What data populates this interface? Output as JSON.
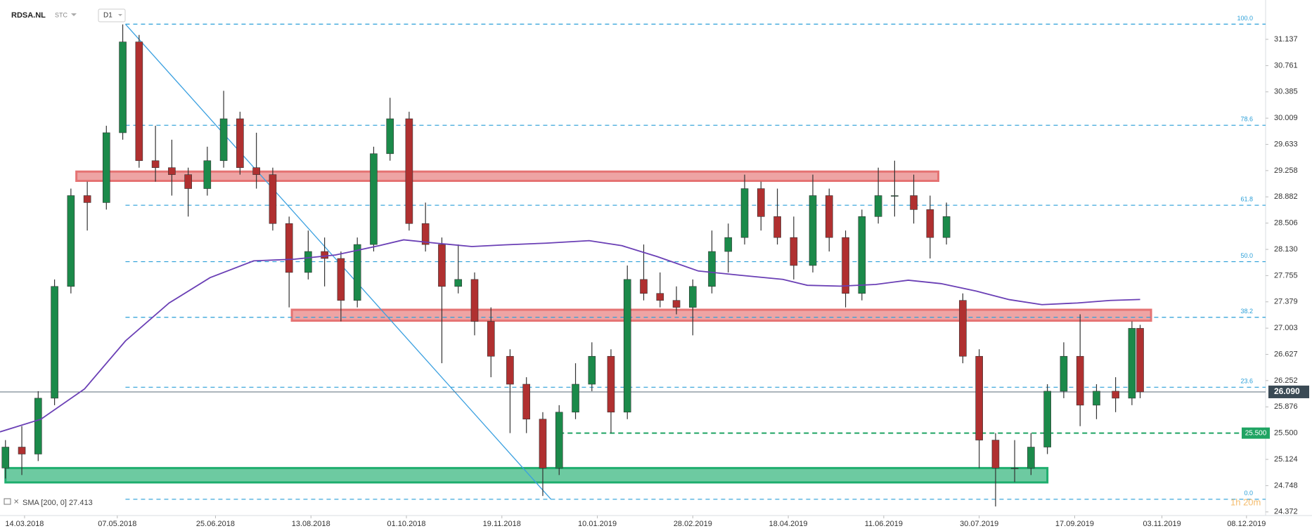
{
  "chart_data": {
    "type": "candlestick",
    "symbol": "RDSA.NL",
    "exchange": "STC",
    "interval": "D1",
    "xlim": [
      0,
      464
    ],
    "xticks": [
      {
        "value": 9,
        "label": "14.03.2018"
      },
      {
        "value": 43,
        "label": "07.05.2018"
      },
      {
        "value": 79,
        "label": "25.06.2018"
      },
      {
        "value": 114,
        "label": "13.08.2018"
      },
      {
        "value": 149,
        "label": "01.10.2018"
      },
      {
        "value": 184,
        "label": "19.11.2018"
      },
      {
        "value": 219,
        "label": "10.01.2019"
      },
      {
        "value": 254,
        "label": "28.02.2019"
      },
      {
        "value": 289,
        "label": "18.04.2019"
      },
      {
        "value": 324,
        "label": "11.06.2019"
      },
      {
        "value": 359,
        "label": "30.07.2019"
      },
      {
        "value": 394,
        "label": "17.09.2019"
      },
      {
        "value": 426,
        "label": "03.11.2019"
      },
      {
        "value": 457,
        "label": "08.12.2019"
      }
    ],
    "ylim": [
      24.32,
      31.7
    ],
    "yticks": [
      31.137,
      30.761,
      30.385,
      30.009,
      29.633,
      29.258,
      28.882,
      28.506,
      {
        "value": 28.13,
        "label": "28.130"
      },
      27.755,
      27.379,
      27.003,
      26.627,
      26.252,
      25.876,
      {
        "value": 25.5,
        "label": "25.500"
      },
      25.124,
      24.748,
      24.372
    ],
    "up_color": "#1b8a4a",
    "down_color": "#b03030",
    "x": [
      2,
      8,
      14,
      20,
      26,
      32,
      39,
      45,
      51,
      57,
      63,
      69,
      76,
      82,
      88,
      94,
      100,
      106,
      113,
      119,
      125,
      131,
      137,
      143,
      150,
      156,
      162,
      168,
      174,
      180,
      187,
      193,
      199,
      205,
      211,
      217,
      224,
      230,
      236,
      242,
      248,
      254,
      261,
      267,
      273,
      279,
      285,
      291,
      298,
      304,
      310,
      316,
      322,
      328,
      335,
      341,
      347,
      353,
      359,
      365,
      372,
      378,
      384,
      390,
      396,
      402,
      409,
      415,
      418
    ],
    "ohlc": [
      [
        25.0,
        25.4,
        24.85,
        25.3
      ],
      [
        25.3,
        25.6,
        24.9,
        25.2
      ],
      [
        25.2,
        26.1,
        25.1,
        26.0
      ],
      [
        26.0,
        27.7,
        25.9,
        27.6
      ],
      [
        27.6,
        29.0,
        27.5,
        28.9
      ],
      [
        28.9,
        29.1,
        28.4,
        28.8
      ],
      [
        28.8,
        29.9,
        28.7,
        29.8
      ],
      [
        29.8,
        31.35,
        29.7,
        31.1
      ],
      [
        31.1,
        31.2,
        29.3,
        29.4
      ],
      [
        29.4,
        29.9,
        29.1,
        29.3
      ],
      [
        29.3,
        29.7,
        28.9,
        29.2
      ],
      [
        29.2,
        29.3,
        28.6,
        29.0
      ],
      [
        29.0,
        29.6,
        28.9,
        29.4
      ],
      [
        29.4,
        30.4,
        29.3,
        30.0
      ],
      [
        30.0,
        30.1,
        29.2,
        29.3
      ],
      [
        29.3,
        29.8,
        29.0,
        29.2
      ],
      [
        29.2,
        29.3,
        28.4,
        28.5
      ],
      [
        28.5,
        28.6,
        27.3,
        27.8
      ],
      [
        27.8,
        28.4,
        27.7,
        28.1
      ],
      [
        28.1,
        28.3,
        27.6,
        28.0
      ],
      [
        28.0,
        28.1,
        27.1,
        27.4
      ],
      [
        27.4,
        28.3,
        27.3,
        28.2
      ],
      [
        28.2,
        29.6,
        28.1,
        29.5
      ],
      [
        29.5,
        30.3,
        29.4,
        30.0
      ],
      [
        30.0,
        30.1,
        28.4,
        28.5
      ],
      [
        28.5,
        28.8,
        28.1,
        28.2
      ],
      [
        28.2,
        28.3,
        26.5,
        27.6
      ],
      [
        27.6,
        28.2,
        27.5,
        27.7
      ],
      [
        27.7,
        27.8,
        26.9,
        27.1
      ],
      [
        27.1,
        27.3,
        26.3,
        26.6
      ],
      [
        26.6,
        26.7,
        25.5,
        26.2
      ],
      [
        26.2,
        26.3,
        25.5,
        25.7
      ],
      [
        25.7,
        25.8,
        24.6,
        25.0
      ],
      [
        25.0,
        25.9,
        24.9,
        25.8
      ],
      [
        25.8,
        26.5,
        25.7,
        26.2
      ],
      [
        26.2,
        26.8,
        26.1,
        26.6
      ],
      [
        26.6,
        26.7,
        25.5,
        25.8
      ],
      [
        25.8,
        27.9,
        25.7,
        27.7
      ],
      [
        27.7,
        28.2,
        27.4,
        27.5
      ],
      [
        27.5,
        27.8,
        27.3,
        27.4
      ],
      [
        27.4,
        27.6,
        27.2,
        27.3
      ],
      [
        27.3,
        27.7,
        26.9,
        27.6
      ],
      [
        27.6,
        28.4,
        27.5,
        28.1
      ],
      [
        28.1,
        28.5,
        27.8,
        28.3
      ],
      [
        28.3,
        29.2,
        28.2,
        29.0
      ],
      [
        29.0,
        29.1,
        28.4,
        28.6
      ],
      [
        28.6,
        29.0,
        28.2,
        28.3
      ],
      [
        28.3,
        28.6,
        27.7,
        27.9
      ],
      [
        27.9,
        29.2,
        27.8,
        28.9
      ],
      [
        28.9,
        29.0,
        28.1,
        28.3
      ],
      [
        28.3,
        28.4,
        27.3,
        27.5
      ],
      [
        27.5,
        28.7,
        27.4,
        28.6
      ],
      [
        28.6,
        29.3,
        28.5,
        28.9
      ],
      [
        28.9,
        29.4,
        28.6,
        28.9
      ],
      [
        28.9,
        29.2,
        28.5,
        28.7
      ],
      [
        28.7,
        28.9,
        28.0,
        28.3
      ],
      [
        28.3,
        28.8,
        28.2,
        28.6
      ],
      [
        27.4,
        27.5,
        26.5,
        26.6
      ],
      [
        26.6,
        26.7,
        25.0,
        25.4
      ],
      [
        25.4,
        25.5,
        24.45,
        25.0
      ],
      [
        25.0,
        25.4,
        24.8,
        25.0
      ],
      [
        25.0,
        25.5,
        24.9,
        25.3
      ],
      [
        25.3,
        26.2,
        25.2,
        26.1
      ],
      [
        26.1,
        26.8,
        26.0,
        26.6
      ],
      [
        26.6,
        27.2,
        25.6,
        25.9
      ],
      [
        25.9,
        26.2,
        25.7,
        26.1
      ],
      [
        26.1,
        26.3,
        25.8,
        26.0
      ],
      [
        26.0,
        27.1,
        25.9,
        27.0
      ],
      [
        27.0,
        27.05,
        26.0,
        26.09
      ]
    ],
    "sma": {
      "label": "SMA [200, 0] 27.413",
      "color": "#6a3fb5",
      "x": [
        0,
        15,
        31,
        46,
        62,
        77,
        93,
        108,
        123,
        139,
        148,
        160,
        173,
        185,
        200,
        216,
        228,
        241,
        256,
        271,
        287,
        296,
        308,
        321,
        333,
        345,
        358,
        370,
        382,
        395,
        407,
        418
      ],
      "values": [
        25.518,
        25.699,
        26.133,
        26.82,
        27.363,
        27.725,
        27.966,
        27.99,
        28.05,
        28.183,
        28.267,
        28.219,
        28.171,
        28.195,
        28.219,
        28.255,
        28.183,
        28.026,
        27.821,
        27.761,
        27.701,
        27.616,
        27.604,
        27.628,
        27.689,
        27.64,
        27.532,
        27.411,
        27.339,
        27.363,
        27.399,
        27.413
      ]
    },
    "trendline": {
      "color": "#3aa0e0",
      "x": [
        46,
        202
      ],
      "y": [
        31.354,
        24.553
      ]
    },
    "fib_color": "#2a9fd8",
    "fib_levels": [
      {
        "label": "100.0",
        "price": 31.354
      },
      {
        "label": "78.6",
        "price": 29.907
      },
      {
        "label": "61.8",
        "price": 28.762
      },
      {
        "label": "50.0",
        "price": 27.954
      },
      {
        "label": "38.2",
        "price": 27.158
      },
      {
        "label": "23.6",
        "price": 26.157
      },
      {
        "label": "0.0",
        "price": 24.553
      }
    ],
    "zones": [
      {
        "x": [
          28,
          344
        ],
        "y": [
          29.111,
          29.244
        ],
        "color": "#e57373"
      },
      {
        "x": [
          107,
          422
        ],
        "y": [
          27.109,
          27.266
        ],
        "color": "#e57373"
      },
      {
        "x": [
          2,
          384
        ],
        "y": [
          24.794,
          25.0
        ],
        "color": "#1fae6e"
      }
    ],
    "support": {
      "value": 25.5,
      "label": "25.500",
      "from_x": 205,
      "color": "#1fa463"
    },
    "last_price": {
      "value": 26.09,
      "label": "26.090"
    },
    "timer": "1h 20m"
  }
}
